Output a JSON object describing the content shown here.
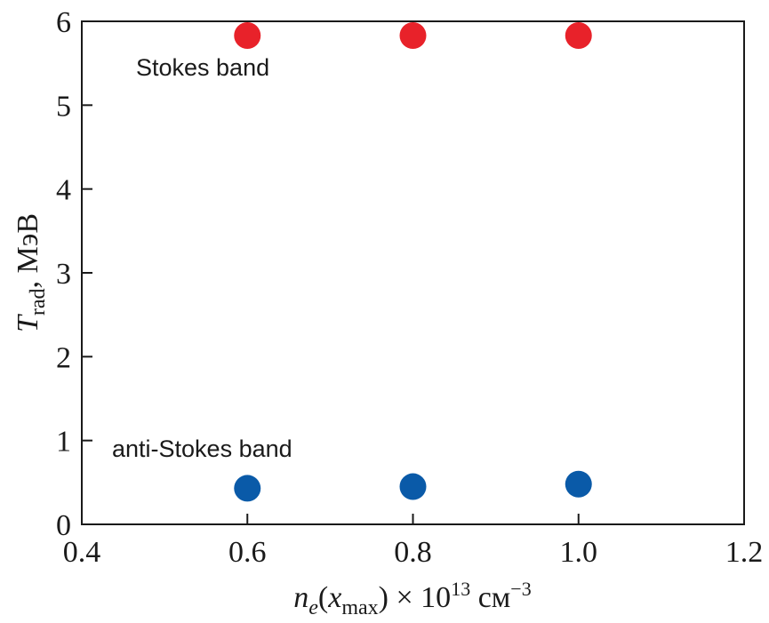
{
  "chart_data": {
    "type": "scatter",
    "xlim": [
      0.4,
      1.2
    ],
    "ylim": [
      0,
      6
    ],
    "x_ticks": [
      0.4,
      0.6,
      0.8,
      1.0,
      1.2
    ],
    "x_tick_labels": [
      "0.4",
      "0.6",
      "0.8",
      "1.0",
      "1.2"
    ],
    "y_ticks": [
      0,
      1,
      2,
      3,
      4,
      5,
      6
    ],
    "y_tick_labels": [
      "0",
      "1",
      "2",
      "3",
      "4",
      "5",
      "6"
    ],
    "xlabel": {
      "n": "n",
      "e": "e",
      "open": "(",
      "x": "x",
      "max": "max",
      "close": ")",
      "times": " × 10",
      "exp13": "13",
      "unit": " см",
      "exp": "−3"
    },
    "ylabel": {
      "T": "T",
      "rad": "rad",
      "unit": ", МэВ"
    },
    "grid": false,
    "series": [
      {
        "label": "Stokes band",
        "color": "#e8222a",
        "points": [
          {
            "x": 0.6,
            "y": 5.83
          },
          {
            "x": 0.8,
            "y": 5.83
          },
          {
            "x": 1.0,
            "y": 5.83
          }
        ]
      },
      {
        "label": "anti-Stokes band",
        "color": "#0a5aa8",
        "points": [
          {
            "x": 0.6,
            "y": 0.43
          },
          {
            "x": 0.8,
            "y": 0.45
          },
          {
            "x": 1.0,
            "y": 0.48
          }
        ]
      }
    ]
  }
}
